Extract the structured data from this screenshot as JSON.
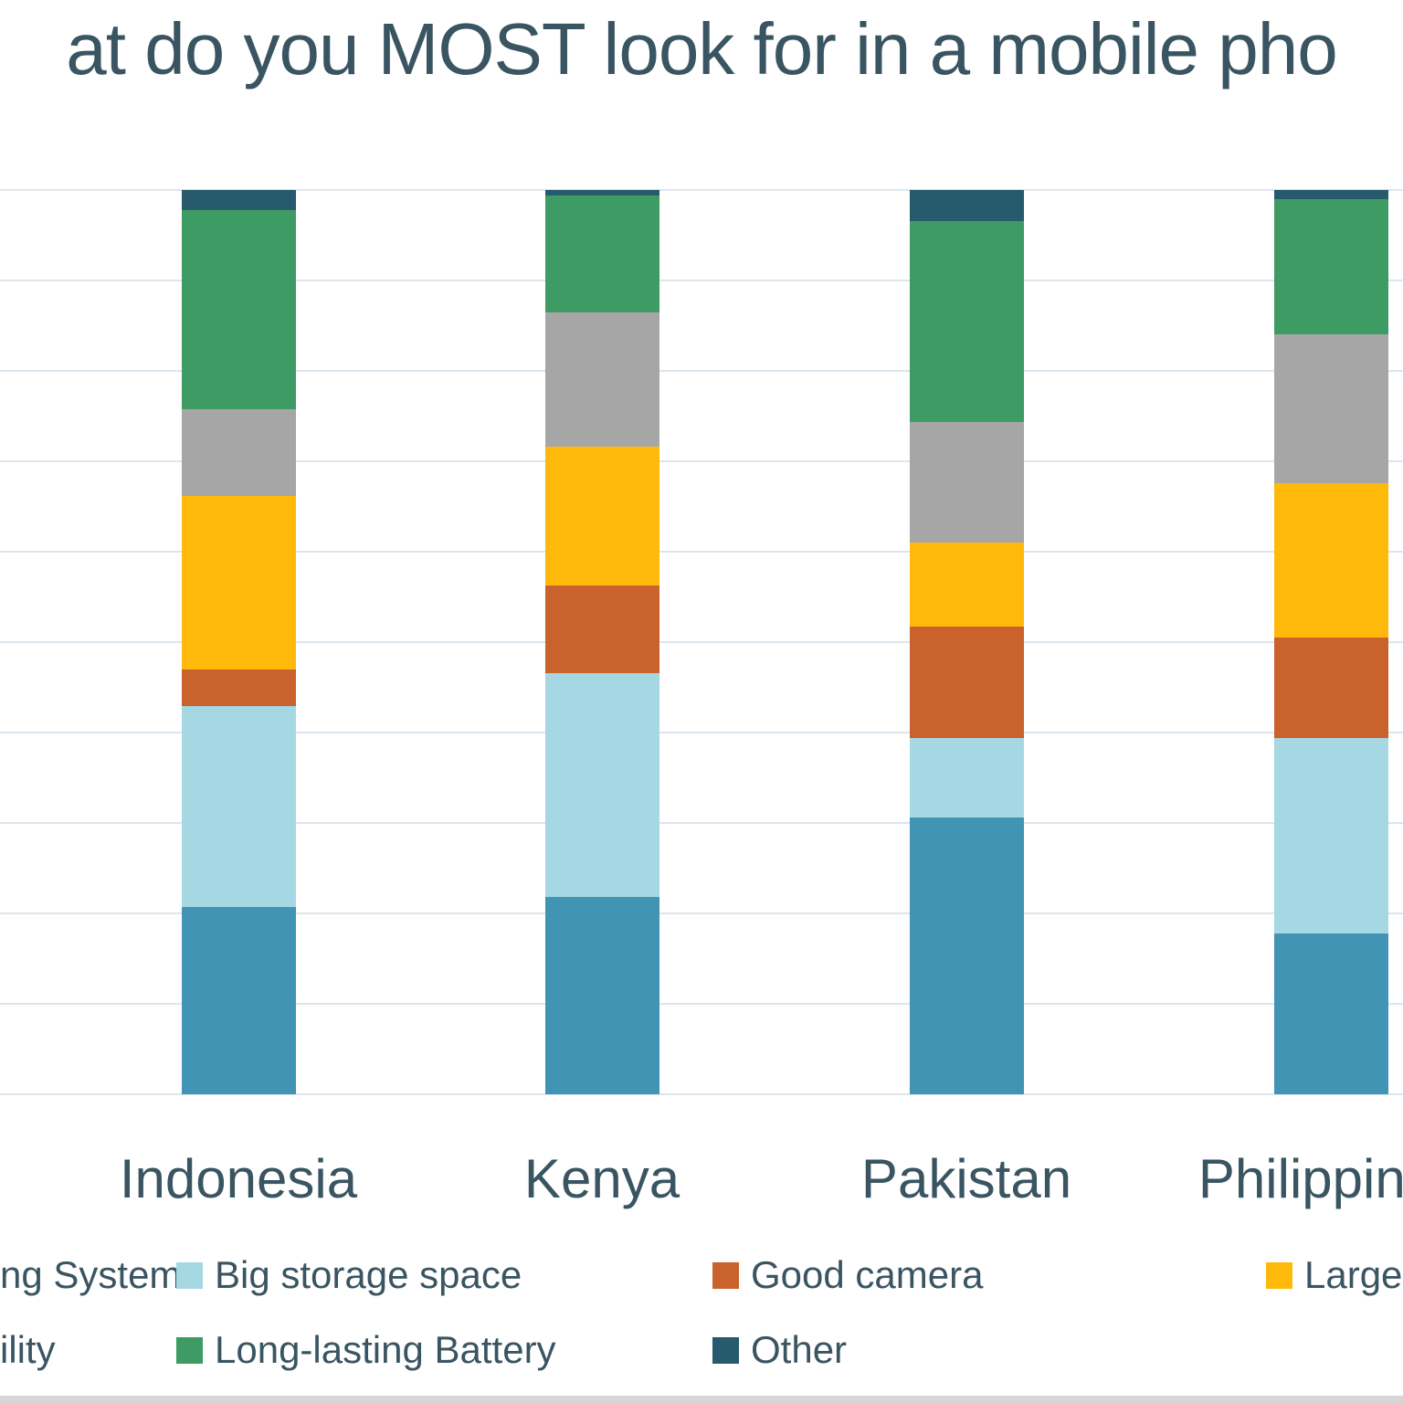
{
  "title": "at do you MOST look for in a mobile pho",
  "chart_data": {
    "type": "bar",
    "stacked": true,
    "unit": "percent",
    "title": "at do you MOST look for in a mobile pho",
    "categories": [
      "Indonesia",
      "Kenya",
      "Pakistan",
      "Philippines"
    ],
    "series": [
      {
        "name": "ng System",
        "color": "#4294B5",
        "values": [
          20.7,
          21.8,
          30.6,
          17.7
        ]
      },
      {
        "name": "Big storage space",
        "color": "#A5D8E2",
        "values": [
          22.2,
          24.7,
          8.8,
          21.6
        ]
      },
      {
        "name": "Good camera",
        "color": "#C9622C",
        "values": [
          4.0,
          9.7,
          12.4,
          11.1
        ]
      },
      {
        "name": "Large Di",
        "color": "#FFB90A",
        "values": [
          19.2,
          15.3,
          9.3,
          17.0
        ]
      },
      {
        "name": "ility",
        "color": "#A6A6A6",
        "values": [
          9.6,
          14.9,
          13.3,
          16.5
        ]
      },
      {
        "name": "Long-lasting Battery",
        "color": "#3E9B63",
        "values": [
          22.0,
          12.9,
          22.3,
          14.9
        ]
      },
      {
        "name": "Other",
        "color": "#275A6D",
        "values": [
          2.2,
          0.6,
          3.4,
          1.0
        ]
      }
    ],
    "ylim_percent": [
      0,
      100
    ],
    "gridline_interval_percent": 10,
    "grid": true,
    "axis_tick_labels_visible": false,
    "legend_position": "bottom"
  },
  "legend": {
    "rows": [
      {
        "items": [
          {
            "label": "ng System",
            "series_index": 0,
            "swatch_visible": false
          },
          {
            "label": "Big storage space",
            "series_index": 1,
            "swatch_visible": true
          },
          {
            "label": "Good camera",
            "series_index": 2,
            "swatch_visible": true
          },
          {
            "label": "Large Di",
            "series_index": 3,
            "swatch_visible": true
          }
        ]
      },
      {
        "items": [
          {
            "label": "ility",
            "series_index": 4,
            "swatch_visible": false
          },
          {
            "label": "Long-lasting Battery",
            "series_index": 5,
            "swatch_visible": true
          },
          {
            "label": "Other",
            "series_index": 6,
            "swatch_visible": true
          }
        ]
      }
    ]
  },
  "colors": {
    "text": "#3A5562",
    "gridline": "#DCE6EE",
    "background": "#FFFFFF",
    "bottom_strip": "#D6D6D6"
  }
}
